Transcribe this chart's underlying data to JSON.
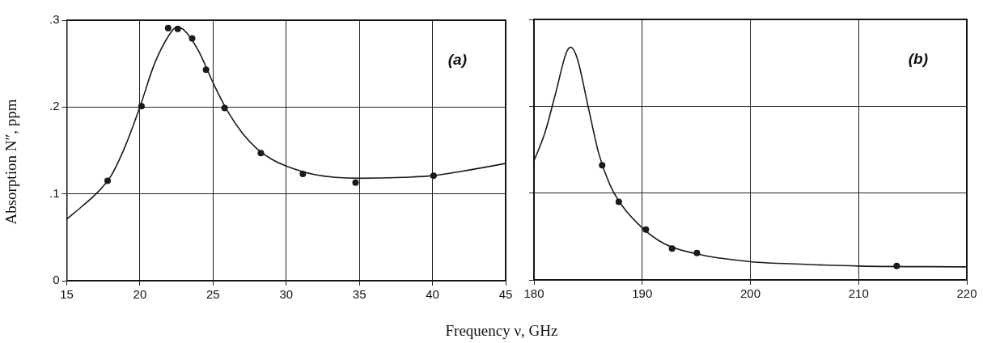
{
  "chart_data": [
    {
      "type": "line",
      "ylabel": "Absorption N″,  ppm",
      "xlabel": "Frequency ν,  GHz",
      "annotations": [
        "(a)"
      ],
      "xlim": [
        15,
        45
      ],
      "xticks": [
        15,
        20,
        25,
        30,
        35,
        40,
        45
      ],
      "ylim": [
        0,
        0.3
      ],
      "yticks": [
        0,
        {
          "value": 0.1,
          "label": ".1"
        },
        {
          "value": 0.2,
          "label": ".2"
        },
        {
          "value": 0.3,
          "label": ".3"
        }
      ],
      "grid": true,
      "legend": false,
      "series": [
        {
          "type": "line",
          "color": "#1a1a1a",
          "marker": "none",
          "line_style": "solid",
          "x": [
            15,
            16,
            17,
            18,
            19,
            20,
            21,
            22,
            22.5,
            23,
            24,
            25,
            26,
            27,
            28,
            29,
            30,
            32,
            35,
            38,
            40,
            42,
            45
          ],
          "values": [
            0.071,
            0.085,
            0.1,
            0.12,
            0.155,
            0.2,
            0.25,
            0.283,
            0.292,
            0.289,
            0.265,
            0.228,
            0.195,
            0.17,
            0.152,
            0.14,
            0.132,
            0.122,
            0.118,
            0.119,
            0.121,
            0.126,
            0.135
          ]
        },
        {
          "type": "scatter",
          "color": "#1a1a1a",
          "marker": "circle",
          "x": [
            17.79,
            20.11,
            21.93,
            22.59,
            23.57,
            24.52,
            25.79,
            28.27,
            31.14,
            34.74,
            40.07
          ],
          "values": [
            0.115,
            0.201,
            0.291,
            0.29,
            0.279,
            0.243,
            0.199,
            0.147,
            0.123,
            0.113,
            0.121
          ]
        }
      ]
    },
    {
      "type": "line",
      "annotations": [
        "(b)"
      ],
      "tick_labels": "x",
      "xlim": [
        180,
        220
      ],
      "xticks": [
        180,
        190,
        200,
        210,
        220
      ],
      "ylim": [
        0,
        0.3
      ],
      "yticks": [
        0,
        0.1,
        0.2,
        0.3
      ],
      "grid": true,
      "legend": false,
      "series": [
        {
          "type": "line",
          "color": "#1a1a1a",
          "marker": "none",
          "line_style": "solid",
          "x": [
            180,
            181,
            182,
            183,
            183.4,
            184,
            185,
            186,
            187,
            188,
            190,
            192,
            195,
            200,
            205,
            210,
            220
          ],
          "values": [
            0.137,
            0.169,
            0.215,
            0.262,
            0.268,
            0.255,
            0.2,
            0.145,
            0.11,
            0.088,
            0.06,
            0.042,
            0.03,
            0.021,
            0.018,
            0.016,
            0.015
          ]
        },
        {
          "type": "scatter",
          "color": "#1a1a1a",
          "marker": "circle",
          "x": [
            186.3,
            187.84,
            190.34,
            192.76,
            195.06,
            213.52
          ],
          "values": [
            0.132,
            0.09,
            0.058,
            0.036,
            0.031,
            0.016
          ]
        }
      ]
    }
  ]
}
